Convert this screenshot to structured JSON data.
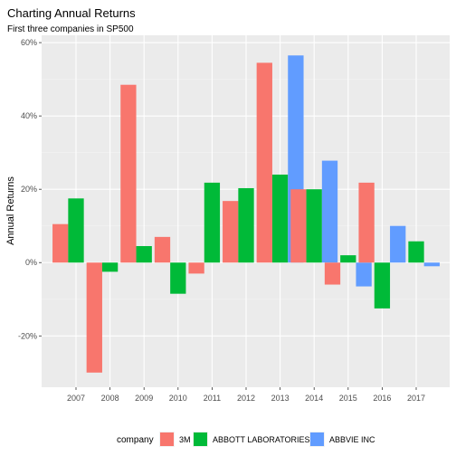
{
  "chart_data": {
    "type": "bar",
    "title": "Charting Annual Returns",
    "subtitle": "First three companies in SP500",
    "xlabel": "",
    "ylabel": "Annual Returns",
    "categories": [
      "2007",
      "2008",
      "2009",
      "2010",
      "2011",
      "2012",
      "2013",
      "2014",
      "2015",
      "2016",
      "2017"
    ],
    "ylim": [
      -34,
      62
    ],
    "yticks": [
      -20,
      0,
      20,
      40,
      60
    ],
    "ytick_labels": [
      "-20%",
      "0%",
      "20%",
      "40%",
      "60%"
    ],
    "grid": true,
    "legend_position": "bottom",
    "legend_title": "company",
    "series": [
      {
        "name": "3M",
        "color": "#F8766D",
        "values": [
          10.5,
          -30,
          48.5,
          7,
          -3,
          16.8,
          54.5,
          20,
          -6,
          21.8,
          null
        ]
      },
      {
        "name": "ABBOTT LABORATORIES",
        "color": "#00BA38",
        "values": [
          17.5,
          -2.5,
          4.5,
          -8.5,
          21.8,
          20.3,
          24,
          20,
          2,
          -12.5,
          5.8
        ]
      },
      {
        "name": "ABBVIE INC",
        "color": "#619CFF",
        "values": [
          null,
          null,
          null,
          null,
          null,
          null,
          56.5,
          27.8,
          -6.5,
          10,
          -1
        ]
      }
    ]
  }
}
